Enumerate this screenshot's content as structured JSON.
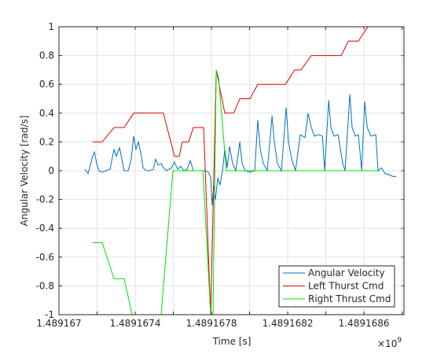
{
  "chart_data": {
    "type": "line",
    "xlabel": "Time [s]",
    "ylabel": "Angular Velocity [rad/s]",
    "x_exponent": {
      "base": "×10",
      "power": "9"
    },
    "xlim": [
      1.489167,
      1.48916881
    ],
    "ylim": [
      -1,
      1
    ],
    "xticks": [
      1.489167,
      {
        "value": 1.4891672
      },
      1.4891674,
      {
        "value": 1.4891676
      },
      1.4891678,
      {
        "value": 1.489168
      },
      1.4891682,
      {
        "value": 1.4891684
      },
      1.4891686,
      {
        "value": 1.4891688
      }
    ],
    "yticks": [
      -1,
      -0.8,
      -0.6,
      -0.4,
      -0.2,
      0,
      0.2,
      0.4,
      0.6,
      0.8,
      1
    ],
    "grid": true,
    "legend": "lower right",
    "series": [
      {
        "name": "Angular Velocity",
        "color": "#0072bd",
        "x": [
          1.489167136,
          1.489167153,
          1.489167177,
          1.489167186,
          1.489167198,
          1.48916721,
          1.489167227,
          1.489167247,
          1.489167268,
          1.489167289,
          1.489167301,
          1.489167318,
          1.48916733,
          1.489167342,
          1.489167363,
          1.489167379,
          1.489167392,
          1.489167404,
          1.489167417,
          1.489167433,
          1.489167441,
          1.489167458,
          1.489167474,
          1.489167495,
          1.489167507,
          1.48916752,
          1.489167536,
          1.489167548,
          1.489167565,
          1.48916759,
          1.489167606,
          1.489167623,
          1.489167639,
          1.489167656,
          1.489167672,
          1.489167689,
          1.489167705,
          1.489167722,
          1.489167742,
          1.489167763,
          1.489167784,
          1.489167796,
          1.489167804,
          1.489167812,
          1.489167821,
          1.489167833,
          1.489167845,
          1.489167858,
          1.48916787,
          1.489167883,
          1.489167895,
          1.489167911,
          1.489167928,
          1.489167949,
          1.489167961,
          1.489167977,
          1.489168002,
          1.489168027,
          1.489168043,
          1.489168056,
          1.489168072,
          1.489168093,
          1.489168118,
          1.48916813,
          1.489168146,
          1.489168167,
          1.489168192,
          1.489168204,
          1.489168221,
          1.489168241,
          1.489168266,
          1.489168291,
          1.489168307,
          1.489168324,
          1.48916834,
          1.489168361,
          1.489168382,
          1.489168394,
          1.489168415,
          1.489168427,
          1.489168443,
          1.489168464,
          1.489168489,
          1.489168501,
          1.489168526,
          1.489168538,
          1.489168555,
          1.489168571,
          1.489168588,
          1.489168604,
          1.489168617,
          1.489168637,
          1.489168662,
          1.489168674,
          1.489168691,
          1.489168711,
          1.489168736,
          1.489168753,
          1.489168769
        ],
        "values": [
          0.01,
          -0.02,
          0.1,
          0.13,
          0.05,
          0,
          -0.01,
          0,
          0.01,
          0.15,
          0.1,
          0.16,
          0.08,
          0,
          0,
          0.08,
          0.24,
          0.15,
          0.2,
          0.1,
          0.02,
          0,
          0,
          0.01,
          0.08,
          0.04,
          0.05,
          0.02,
          0,
          0.02,
          0.06,
          0.01,
          0.03,
          0,
          0.01,
          0.07,
          0,
          0,
          0,
          0,
          -0.01,
          -0.05,
          -0.24,
          -0.1,
          -0.2,
          -0.05,
          -0.1,
          0,
          0.15,
          0.02,
          0.17,
          0.05,
          0,
          0.2,
          0.05,
          0,
          -0.01,
          0,
          0.35,
          0.15,
          0.05,
          0,
          0.38,
          0.2,
          0.05,
          0,
          0.44,
          0.2,
          0.08,
          0,
          0.25,
          0.23,
          0.4,
          0.3,
          0.24,
          0.25,
          0.24,
          0,
          0.49,
          0.3,
          0.24,
          0.25,
          0.05,
          0,
          0.53,
          0.3,
          0.24,
          0.25,
          0,
          0.48,
          0.3,
          0.24,
          0.25,
          0,
          0.02,
          -0.02,
          -0.03,
          -0.04,
          -0.04
        ]
      },
      {
        "name": "Left Thurst Cmd",
        "color": "#e00000",
        "x": [
          1.489167177,
          1.489167227,
          1.489167289,
          1.489167342,
          1.489167392,
          1.489167548,
          1.489167606,
          1.489167631,
          1.489167647,
          1.48916768,
          1.489167705,
          1.489167759,
          1.489167796,
          1.489167825,
          1.48916787,
          1.489167916,
          1.489167949,
          1.489168002,
          1.489168043,
          1.489168188,
          1.489168237,
          1.48916827,
          1.489168324,
          1.489168481,
          1.489168518,
          1.489168571,
          1.489168621,
          1.489168662
        ],
        "values": [
          0.2,
          0.2,
          0.3,
          0.3,
          0.4,
          0.4,
          0.1,
          0.1,
          0.2,
          0.2,
          0.3,
          0.3,
          -1,
          0.7,
          0.4,
          0.4,
          0.5,
          0.5,
          0.6,
          0.6,
          0.7,
          0.7,
          0.8,
          0.8,
          0.9,
          0.9,
          1,
          1
        ]
      },
      {
        "name": "Right Thrust Cmd",
        "color": "#00e000",
        "x": [
          1.489167177,
          1.489167227,
          1.489167289,
          1.489167342,
          1.489167384,
          1.489167536,
          1.489167598,
          1.489167755,
          1.489167796,
          1.489167808,
          1.489167825,
          1.489167837,
          1.489167878,
          1.489168683
        ],
        "values": [
          -0.5,
          -0.5,
          -0.75,
          -0.75,
          -1,
          -1,
          0,
          0,
          -1,
          -1,
          0.7,
          0.65,
          0,
          0
        ]
      }
    ]
  }
}
